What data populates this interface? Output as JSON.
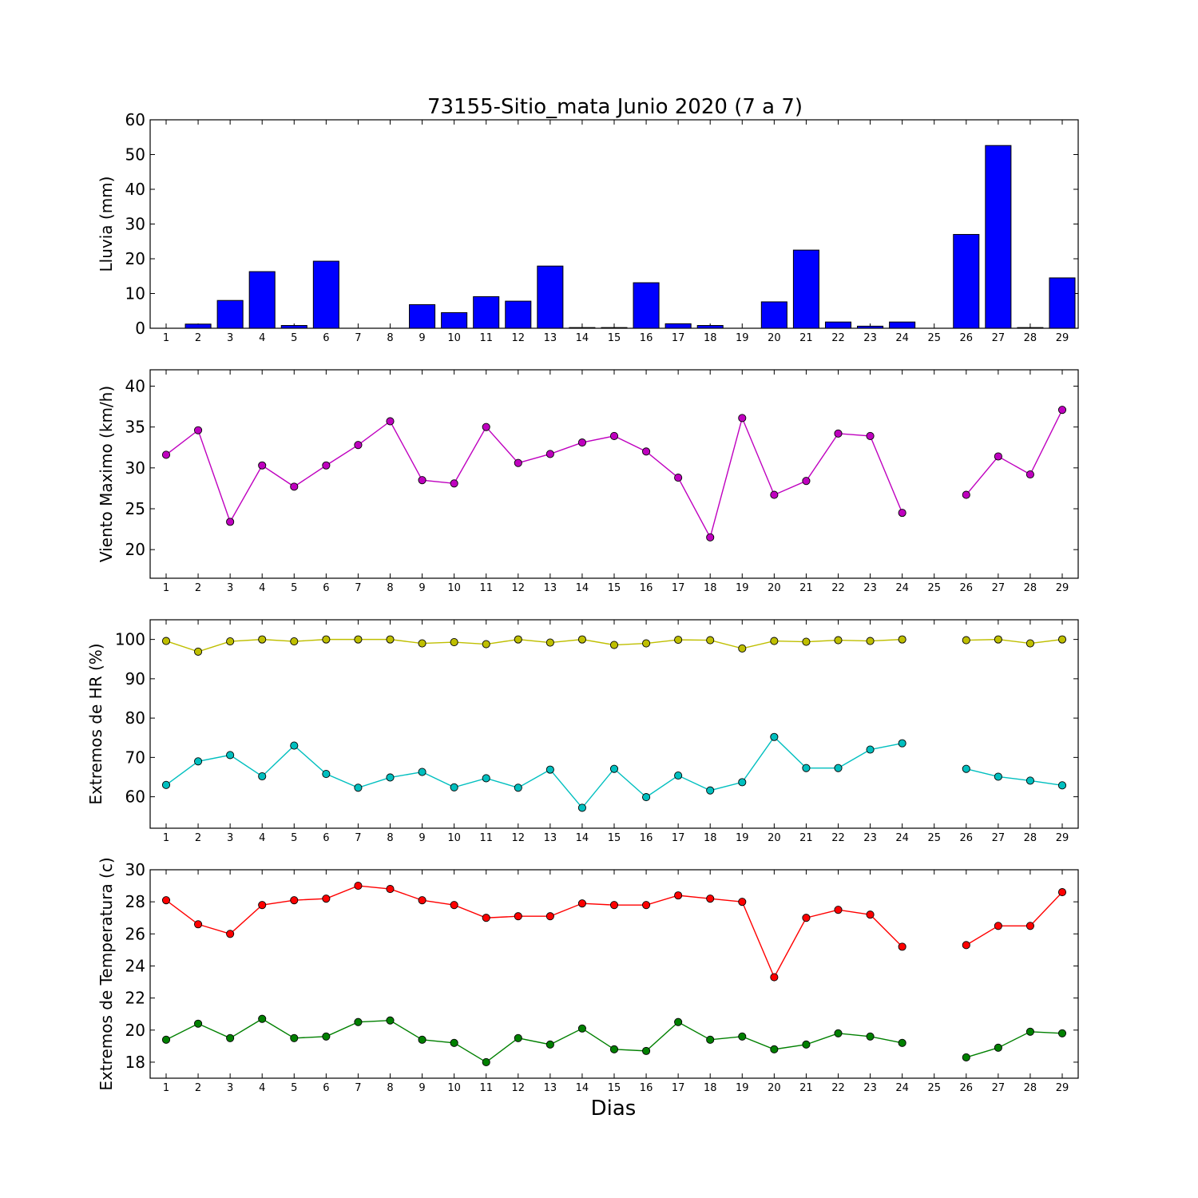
{
  "figure": {
    "title": "73155-Sitio_mata Junio 2020  (7 a 7)",
    "xlabel": "Dias"
  },
  "colors": {
    "rain": "#0000ff",
    "wind": "#bf00bf",
    "hr_max": "#bfbf00",
    "hr_min": "#00bfbf",
    "temp_max": "#ff0000",
    "temp_min": "#008000"
  },
  "chart_data": [
    {
      "type": "bar",
      "ylabel": "Lluvia (mm)",
      "ylim": [
        0,
        60
      ],
      "yticks": [
        0,
        10,
        20,
        30,
        40,
        50,
        60
      ],
      "categories": [
        "1",
        "2",
        "3",
        "4",
        "5",
        "6",
        "7",
        "8",
        "9",
        "10",
        "11",
        "12",
        "13",
        "14",
        "15",
        "16",
        "17",
        "18",
        "19",
        "20",
        "21",
        "22",
        "23",
        "24",
        "25",
        "26",
        "27",
        "28",
        "29"
      ],
      "series": [
        {
          "values": [
            0,
            1.2,
            8.0,
            16.3,
            0.8,
            19.3,
            0,
            0,
            6.8,
            4.5,
            9.1,
            7.8,
            17.9,
            0.2,
            0.2,
            13.1,
            1.3,
            0.8,
            0,
            7.6,
            22.5,
            1.8,
            0.6,
            1.8,
            0,
            27.0,
            52.6,
            0.2,
            14.5
          ]
        }
      ]
    },
    {
      "type": "line",
      "ylabel": "Viento Maximo (km/h)",
      "ylim": [
        16.5,
        42
      ],
      "yticks": [
        20,
        25,
        30,
        35,
        40
      ],
      "categories": [
        "1",
        "2",
        "3",
        "4",
        "5",
        "6",
        "7",
        "8",
        "9",
        "10",
        "11",
        "12",
        "13",
        "14",
        "15",
        "16",
        "17",
        "18",
        "19",
        "20",
        "21",
        "22",
        "23",
        "24",
        "25",
        "26",
        "27",
        "28",
        "29"
      ],
      "series": [
        {
          "values": [
            31.6,
            34.6,
            23.4,
            30.3,
            27.7,
            30.3,
            32.8,
            35.7,
            28.5,
            28.1,
            35.0,
            30.6,
            31.7,
            33.1,
            33.9,
            32.0,
            28.8,
            21.5,
            36.1,
            26.7,
            28.4,
            34.2,
            33.9,
            24.5,
            null,
            26.7,
            31.4,
            29.2,
            37.1
          ]
        }
      ]
    },
    {
      "type": "line",
      "ylabel": "Extremos de HR (%)",
      "ylim": [
        52,
        105
      ],
      "yticks": [
        60,
        70,
        80,
        90,
        100
      ],
      "categories": [
        "1",
        "2",
        "3",
        "4",
        "5",
        "6",
        "7",
        "8",
        "9",
        "10",
        "11",
        "12",
        "13",
        "14",
        "15",
        "16",
        "17",
        "18",
        "19",
        "20",
        "21",
        "22",
        "23",
        "24",
        "25",
        "26",
        "27",
        "28",
        "29"
      ],
      "series": [
        {
          "values": [
            99.6,
            96.9,
            99.5,
            100.0,
            99.5,
            100.0,
            100.0,
            100.0,
            99.0,
            99.3,
            98.8,
            100.0,
            99.2,
            100.0,
            98.6,
            99.0,
            99.9,
            99.8,
            97.7,
            99.6,
            99.4,
            99.8,
            99.6,
            100.0,
            null,
            99.8,
            100.0,
            99.0,
            100.0
          ]
        },
        {
          "values": [
            63.0,
            69.0,
            70.6,
            65.2,
            73.0,
            65.8,
            62.3,
            64.9,
            66.3,
            62.4,
            64.7,
            62.3,
            66.9,
            57.2,
            67.1,
            59.9,
            65.4,
            61.6,
            63.7,
            75.2,
            67.3,
            67.3,
            72.0,
            73.6,
            null,
            67.1,
            65.1,
            64.1,
            62.9
          ]
        }
      ]
    },
    {
      "type": "line",
      "ylabel": "Extremos de Temperatura (c)",
      "ylim": [
        17,
        30
      ],
      "yticks": [
        18,
        20,
        22,
        24,
        26,
        28,
        30
      ],
      "categories": [
        "1",
        "2",
        "3",
        "4",
        "5",
        "6",
        "7",
        "8",
        "9",
        "10",
        "11",
        "12",
        "13",
        "14",
        "15",
        "16",
        "17",
        "18",
        "19",
        "20",
        "21",
        "22",
        "23",
        "24",
        "25",
        "26",
        "27",
        "28",
        "29"
      ],
      "series": [
        {
          "values": [
            28.1,
            26.6,
            26.0,
            27.8,
            28.1,
            28.2,
            29.0,
            28.8,
            28.1,
            27.8,
            27.0,
            27.1,
            27.1,
            27.9,
            27.8,
            27.8,
            28.4,
            28.2,
            28.0,
            23.3,
            27.0,
            27.5,
            27.2,
            25.2,
            null,
            25.3,
            26.5,
            26.5,
            28.6
          ]
        },
        {
          "values": [
            19.4,
            20.4,
            19.5,
            20.7,
            19.5,
            19.6,
            20.5,
            20.6,
            19.4,
            19.2,
            18.0,
            19.5,
            19.1,
            20.1,
            18.8,
            18.7,
            20.5,
            19.4,
            19.6,
            18.8,
            19.1,
            19.8,
            19.6,
            19.2,
            null,
            18.3,
            18.9,
            19.9,
            19.8
          ]
        }
      ]
    }
  ]
}
